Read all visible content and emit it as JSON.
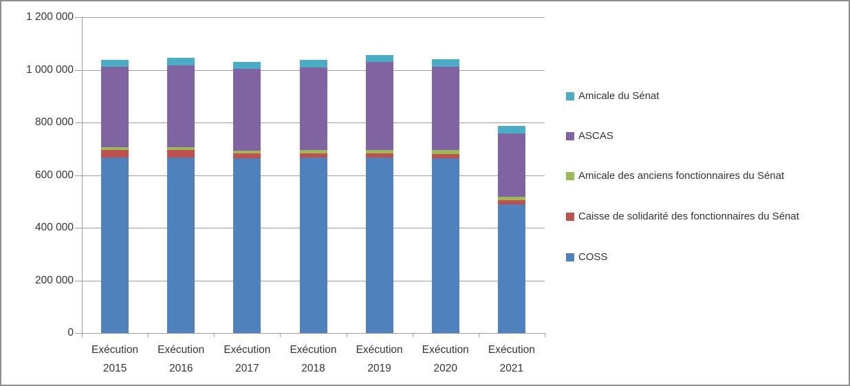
{
  "chart_data": {
    "type": "bar",
    "stacked": true,
    "title": "",
    "xlabel": "",
    "ylabel": "",
    "categories": [
      "Exécution 2015",
      "Exécution 2016",
      "Exécution 2017",
      "Exécution 2018",
      "Exécution 2019",
      "Exécution 2020",
      "Exécution 2021"
    ],
    "series": [
      {
        "name": "COSS",
        "color": "#4F81BD",
        "values": [
          666000,
          667000,
          665000,
          666000,
          667000,
          665000,
          489000
        ]
      },
      {
        "name": "Caisse de solidarité des fonctionnaires du Sénat",
        "color": "#C0504D",
        "values": [
          29000,
          29000,
          18000,
          17000,
          16000,
          16000,
          16000
        ]
      },
      {
        "name": "Amicale des anciens fonctionnaires du Sénat",
        "color": "#9BBB59",
        "values": [
          10000,
          9000,
          11000,
          13000,
          12000,
          14000,
          13000
        ]
      },
      {
        "name": "ASCAS",
        "color": "#8064A2",
        "values": [
          306000,
          311000,
          310000,
          314000,
          336000,
          317000,
          239000
        ]
      },
      {
        "name": "Amicale du Sénat",
        "color": "#4BACC6",
        "values": [
          26000,
          30000,
          26000,
          29000,
          24000,
          28000,
          31000
        ]
      }
    ],
    "stack_order": "bottom-to-top",
    "legend_position": "right",
    "legend_order_top_to_bottom": [
      "Amicale du Sénat",
      "ASCAS",
      "Amicale des anciens fonctionnaires du Sénat",
      "Caisse de solidarité des fonctionnaires du Sénat",
      "COSS"
    ],
    "ylim": [
      0,
      1200000
    ],
    "yticks": [
      {
        "value": 0,
        "label": "0"
      },
      {
        "value": 200000,
        "label": "200 000"
      },
      {
        "value": 400000,
        "label": "400 000"
      },
      {
        "value": 600000,
        "label": "600 000"
      },
      {
        "value": 800000,
        "label": "800 000"
      },
      {
        "value": 1000000,
        "label": "1 000 000"
      },
      {
        "value": 1200000,
        "label": "1 200 000"
      }
    ],
    "grid": true
  },
  "colors": {
    "grid": "#9c9c9c",
    "axis": "#9c9c9c",
    "text": "#333333",
    "frame_border": "#8e8e8e",
    "background": "#ffffff"
  }
}
